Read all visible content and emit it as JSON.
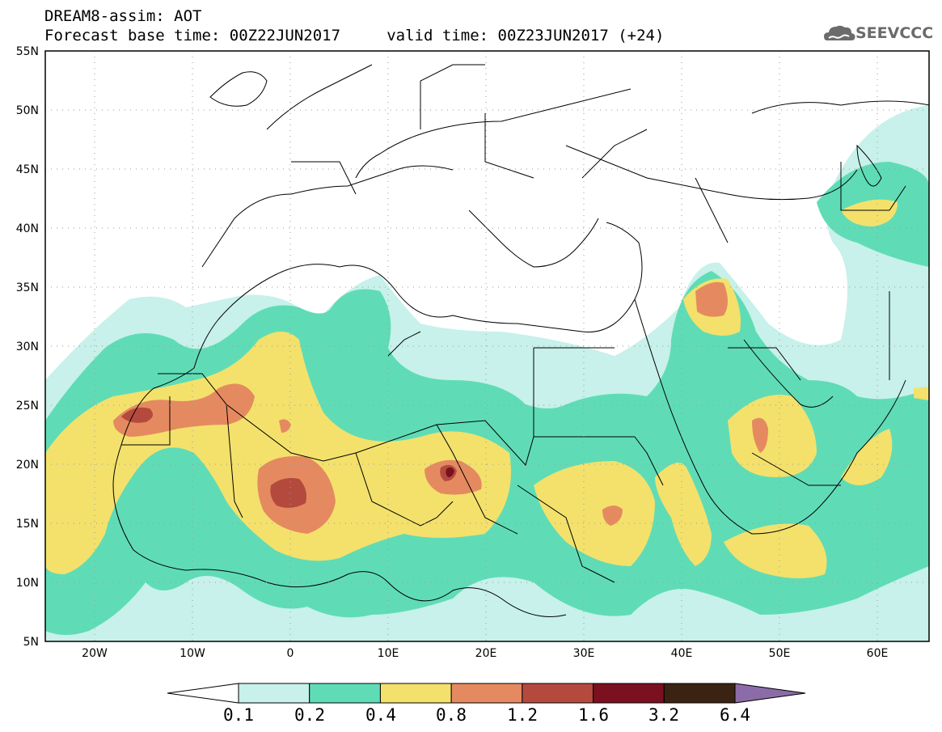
{
  "header": {
    "title_line1": "DREAM8-assim: AOT",
    "title_line2": "Forecast base time: 00Z22JUN2017     valid time: 00Z23JUN2017 (+24)"
  },
  "logo": {
    "text": "SEEVCCC",
    "icon": "cloud-icon"
  },
  "map": {
    "lon_range": [
      -25,
      65
    ],
    "lat_range": [
      5,
      55
    ],
    "lat_ticks": [
      "5N",
      "10N",
      "15N",
      "20N",
      "25N",
      "30N",
      "35N",
      "40N",
      "45N",
      "50N",
      "55N"
    ],
    "lon_ticks": [
      "20W",
      "10W",
      "0",
      "10E",
      "20E",
      "30E",
      "40E",
      "50E",
      "60E"
    ],
    "grid": true
  },
  "colorbar": {
    "labels": [
      "0.1",
      "0.2",
      "0.4",
      "0.8",
      "1.2",
      "1.6",
      "3.2",
      "6.4"
    ],
    "colors": [
      "#c7f1ea",
      "#5fdcb6",
      "#f3e16c",
      "#e58a60",
      "#b44a3e",
      "#7b1020",
      "#3b2314"
    ],
    "under_color": "#ffffff",
    "over_color": "#8c6ca8"
  },
  "palette": {
    "c01": "#c7f1ea",
    "c02": "#5fdcb6",
    "c04": "#f3e16c",
    "c08": "#e58a60",
    "c12": "#b44a3e",
    "c16": "#7b1020"
  }
}
